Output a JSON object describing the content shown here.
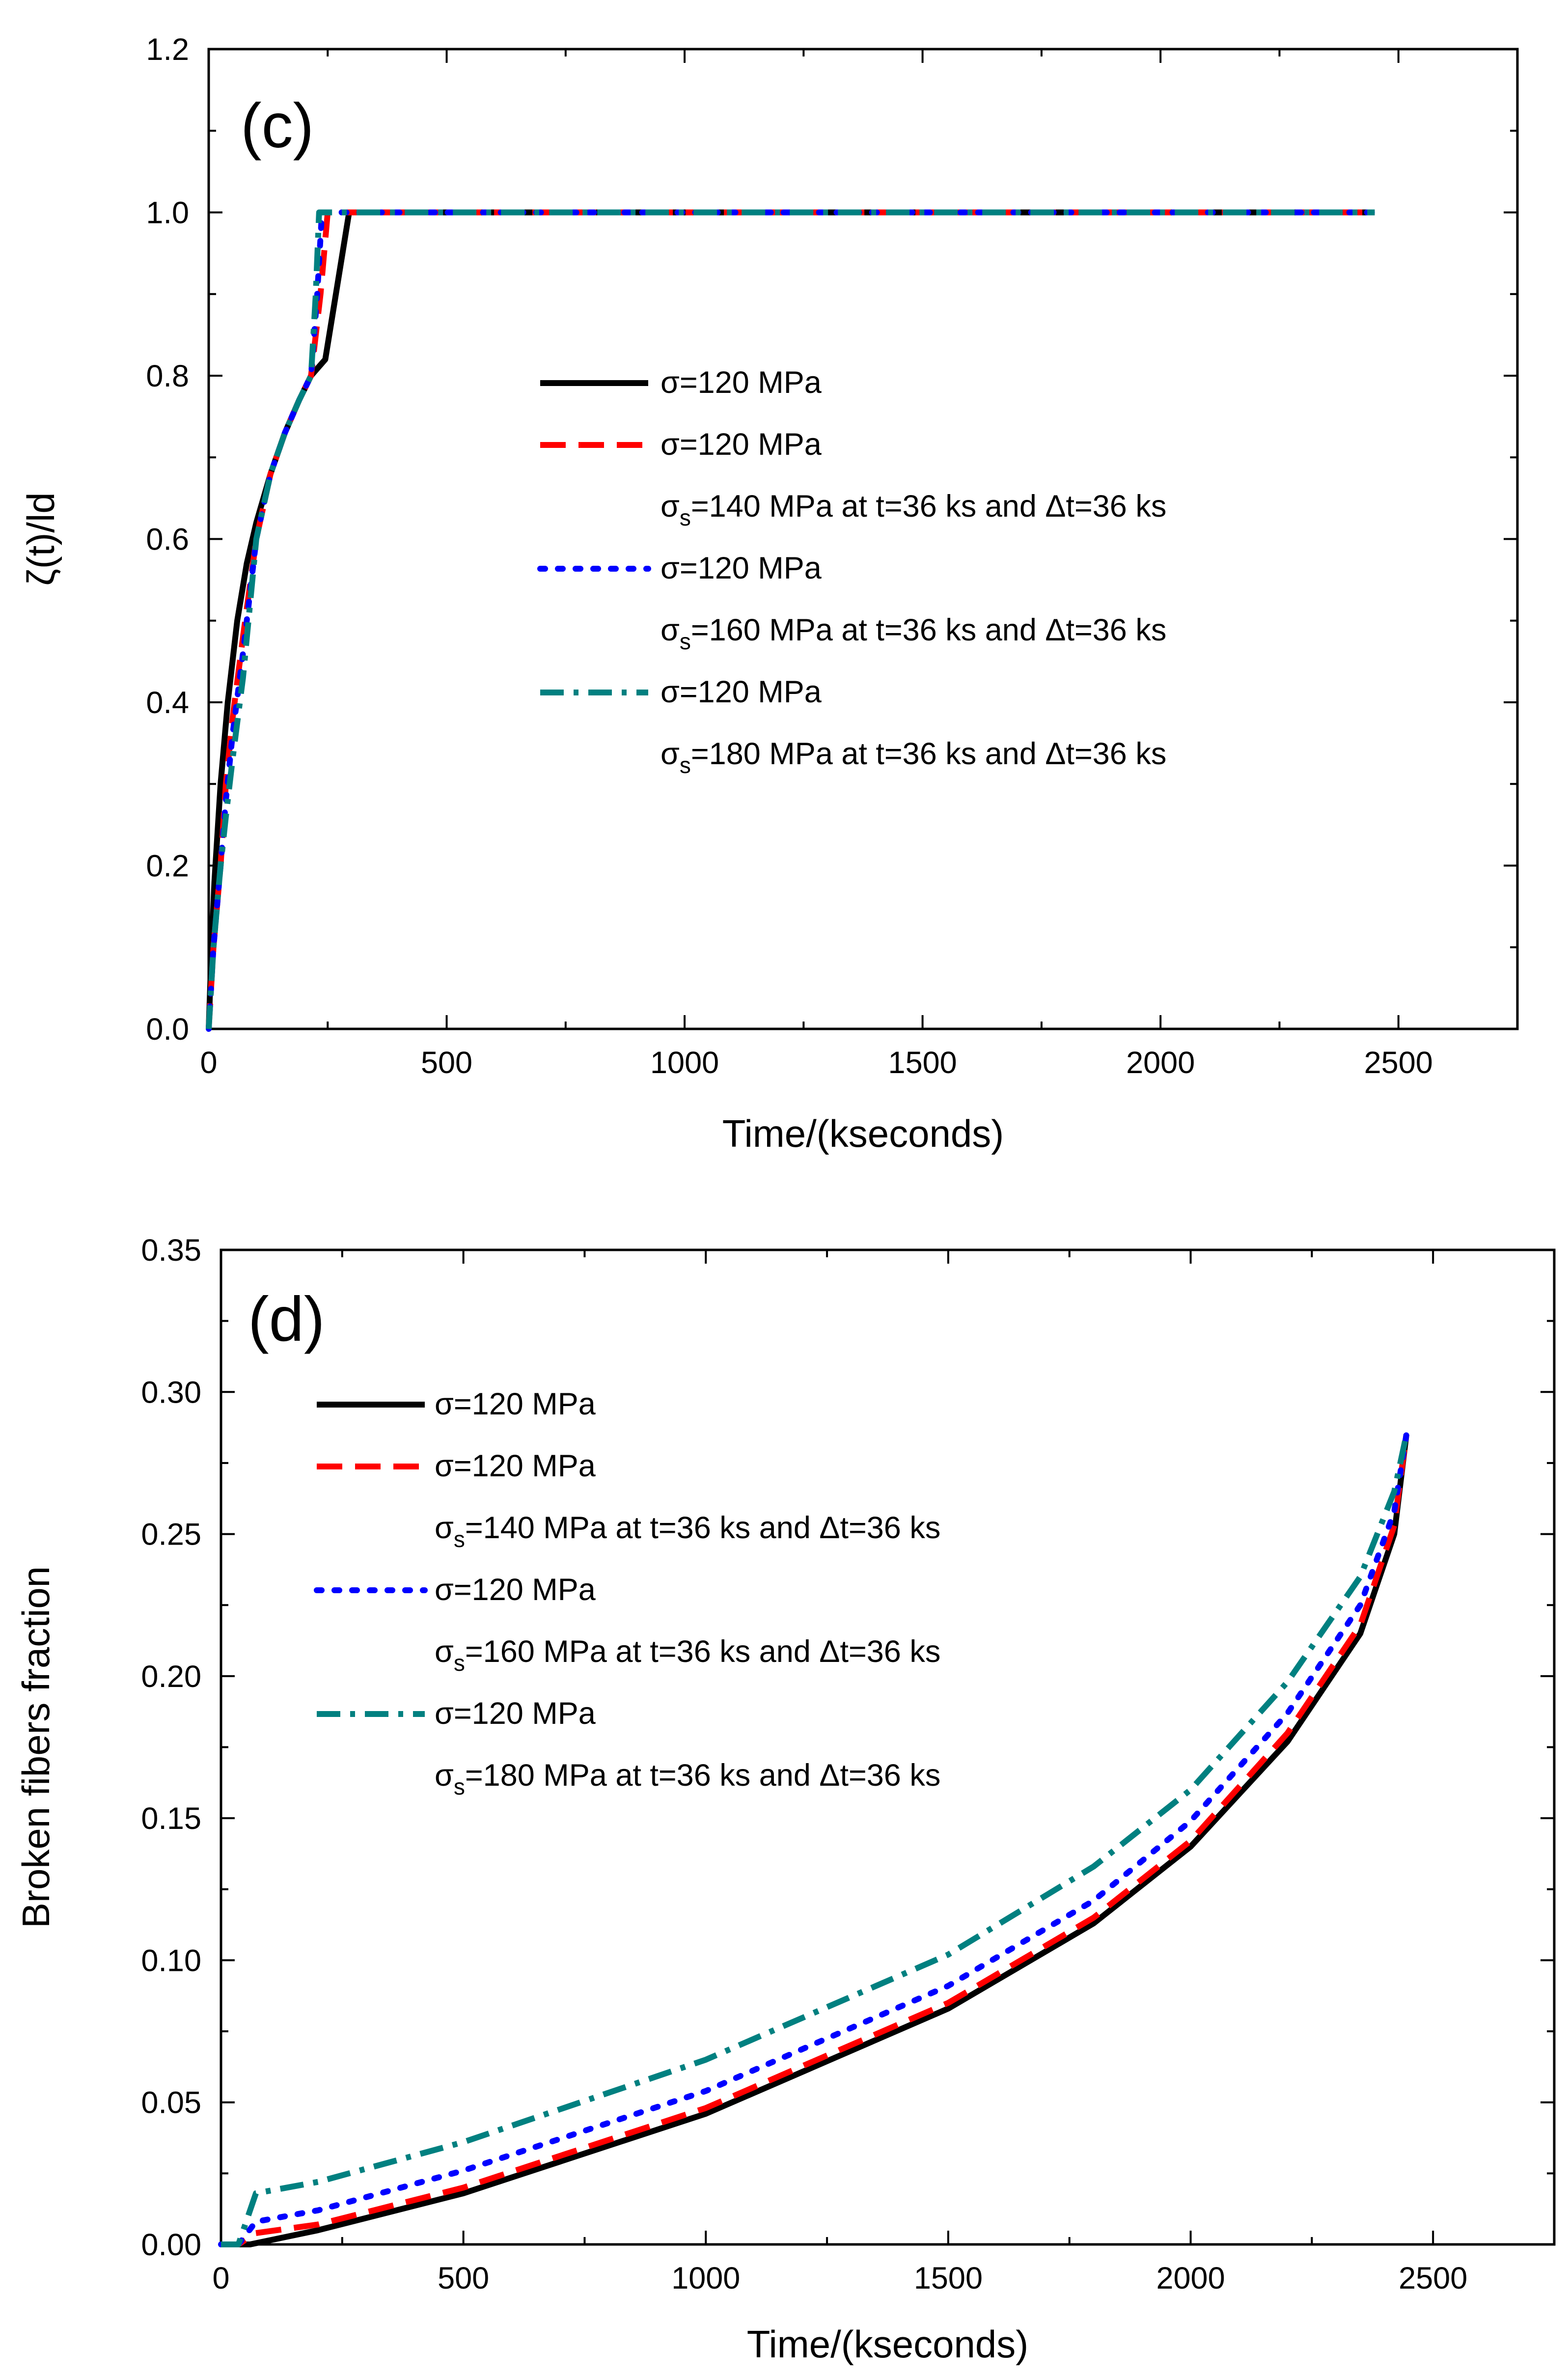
{
  "chart_data": [
    {
      "type": "line",
      "panel_label": "(c)",
      "xlabel": "Time/(kseconds)",
      "ylabel": "ζ(t)/ld",
      "xlim": [
        0,
        2750
      ],
      "ylim": [
        0,
        1.2
      ],
      "x_ticks": [
        "0",
        "500",
        "1000",
        "1500",
        "2000",
        "2500"
      ],
      "y_ticks": [
        "0.0",
        "0.2",
        "0.4",
        "0.6",
        "0.8",
        "1.0",
        "1.2"
      ],
      "legend_position": "center-right",
      "series": [
        {
          "name": "σ=120 MPa",
          "legend_lines": [
            "σ=120 MPa"
          ],
          "color": "#000000",
          "dash": "solid",
          "points": [
            [
              0,
              0.0
            ],
            [
              6,
              0.1
            ],
            [
              12,
              0.18
            ],
            [
              25,
              0.3
            ],
            [
              40,
              0.4
            ],
            [
              60,
              0.5
            ],
            [
              80,
              0.57
            ],
            [
              100,
              0.62
            ],
            [
              130,
              0.68
            ],
            [
              160,
              0.73
            ],
            [
              190,
              0.77
            ],
            [
              215,
              0.8
            ],
            [
              245,
              0.82
            ],
            [
              270,
              0.91
            ],
            [
              295,
              1.0
            ],
            [
              1000,
              1.0
            ],
            [
              2000,
              1.0
            ],
            [
              2450,
              1.0
            ]
          ]
        },
        {
          "name": "σ=120 MPa, σs=140 MPa at t=36 ks and Δt=36 ks",
          "legend_lines": [
            "σ=120 MPa",
            "σs=140 MPa at t=36 ks and Δt=36 ks"
          ],
          "color": "#ff0000",
          "dash": "long-dash",
          "points": [
            [
              0,
              0.0
            ],
            [
              10,
              0.1
            ],
            [
              25,
              0.2
            ],
            [
              36,
              0.3
            ],
            [
              50,
              0.38
            ],
            [
              72,
              0.48
            ],
            [
              100,
              0.6
            ],
            [
              130,
              0.68
            ],
            [
              160,
              0.73
            ],
            [
              190,
              0.77
            ],
            [
              215,
              0.8
            ],
            [
              235,
              0.9
            ],
            [
              250,
              1.0
            ],
            [
              1000,
              1.0
            ],
            [
              2000,
              1.0
            ],
            [
              2450,
              1.0
            ]
          ]
        },
        {
          "name": "σ=120 MPa, σs=160 MPa at t=36 ks and Δt=36 ks",
          "legend_lines": [
            "σ=120 MPa",
            "σs=160 MPa at t=36 ks and Δt=36 ks"
          ],
          "color": "#0000ff",
          "dash": "dot",
          "points": [
            [
              0,
              0.0
            ],
            [
              10,
              0.1
            ],
            [
              25,
              0.2
            ],
            [
              36,
              0.28
            ],
            [
              50,
              0.36
            ],
            [
              72,
              0.46
            ],
            [
              100,
              0.6
            ],
            [
              130,
              0.68
            ],
            [
              160,
              0.73
            ],
            [
              190,
              0.77
            ],
            [
              215,
              0.8
            ],
            [
              228,
              0.9
            ],
            [
              238,
              1.0
            ],
            [
              1000,
              1.0
            ],
            [
              2000,
              1.0
            ],
            [
              2450,
              1.0
            ]
          ]
        },
        {
          "name": "σ=120 MPa, σs=180 MPa at t=36 ks and Δt=36 ks",
          "legend_lines": [
            "σ=120 MPa",
            "σs=180 MPa at t=36 ks and Δt=36 ks"
          ],
          "color": "#008080",
          "dash": "dash-dot",
          "points": [
            [
              0,
              0.0
            ],
            [
              10,
              0.1
            ],
            [
              25,
              0.2
            ],
            [
              36,
              0.26
            ],
            [
              50,
              0.33
            ],
            [
              72,
              0.43
            ],
            [
              100,
              0.6
            ],
            [
              130,
              0.68
            ],
            [
              160,
              0.73
            ],
            [
              190,
              0.77
            ],
            [
              215,
              0.8
            ],
            [
              225,
              0.9
            ],
            [
              232,
              1.0
            ],
            [
              1000,
              1.0
            ],
            [
              2000,
              1.0
            ],
            [
              2450,
              1.0
            ]
          ]
        }
      ]
    },
    {
      "type": "line",
      "panel_label": "(d)",
      "xlabel": "Time/(kseconds)",
      "ylabel": "Broken fibers fraction",
      "xlim": [
        0,
        2750
      ],
      "ylim": [
        0,
        0.35
      ],
      "x_ticks": [
        "0",
        "500",
        "1000",
        "1500",
        "2000",
        "2500"
      ],
      "y_ticks": [
        "0.00",
        "0.05",
        "0.10",
        "0.15",
        "0.20",
        "0.25",
        "0.30",
        "0.35"
      ],
      "legend_position": "top-left",
      "series": [
        {
          "name": "σ=120 MPa",
          "legend_lines": [
            "σ=120 MPa"
          ],
          "color": "#000000",
          "dash": "solid",
          "points": [
            [
              0,
              0.0
            ],
            [
              60,
              0.0
            ],
            [
              200,
              0.005
            ],
            [
              500,
              0.018
            ],
            [
              1000,
              0.046
            ],
            [
              1500,
              0.083
            ],
            [
              1800,
              0.113
            ],
            [
              2000,
              0.14
            ],
            [
              2200,
              0.177
            ],
            [
              2350,
              0.215
            ],
            [
              2420,
              0.25
            ],
            [
              2445,
              0.285
            ]
          ]
        },
        {
          "name": "σ=120 MPa, σs=140 MPa at t=36 ks and Δt=36 ks",
          "legend_lines": [
            "σ=120 MPa",
            "σs=140 MPa at t=36 ks and Δt=36 ks"
          ],
          "color": "#ff0000",
          "dash": "long-dash",
          "points": [
            [
              0,
              0.0
            ],
            [
              36,
              0.0
            ],
            [
              72,
              0.004
            ],
            [
              200,
              0.007
            ],
            [
              500,
              0.02
            ],
            [
              1000,
              0.048
            ],
            [
              1500,
              0.085
            ],
            [
              1800,
              0.115
            ],
            [
              2000,
              0.142
            ],
            [
              2200,
              0.18
            ],
            [
              2350,
              0.218
            ],
            [
              2420,
              0.253
            ],
            [
              2445,
              0.285
            ]
          ]
        },
        {
          "name": "σ=120 MPa, σs=160 MPa at t=36 ks and Δt=36 ks",
          "legend_lines": [
            "σ=120 MPa",
            "σs=160 MPa at t=36 ks and Δt=36 ks"
          ],
          "color": "#0000ff",
          "dash": "dot",
          "points": [
            [
              0,
              0.0
            ],
            [
              36,
              0.0
            ],
            [
              72,
              0.008
            ],
            [
              200,
              0.012
            ],
            [
              500,
              0.026
            ],
            [
              1000,
              0.054
            ],
            [
              1500,
              0.091
            ],
            [
              1800,
              0.121
            ],
            [
              2000,
              0.149
            ],
            [
              2200,
              0.187
            ],
            [
              2350,
              0.225
            ],
            [
              2420,
              0.258
            ],
            [
              2445,
              0.285
            ]
          ]
        },
        {
          "name": "σ=120 MPa, σs=180 MPa at t=36 ks and Δt=36 ks",
          "legend_lines": [
            "σ=120 MPa",
            "σs=180 MPa at t=36 ks and Δt=36 ks"
          ],
          "color": "#008080",
          "dash": "dash-dot",
          "points": [
            [
              0,
              0.0
            ],
            [
              36,
              0.0
            ],
            [
              72,
              0.018
            ],
            [
              200,
              0.022
            ],
            [
              500,
              0.036
            ],
            [
              1000,
              0.065
            ],
            [
              1500,
              0.102
            ],
            [
              1800,
              0.133
            ],
            [
              2000,
              0.16
            ],
            [
              2200,
              0.198
            ],
            [
              2350,
              0.235
            ],
            [
              2420,
              0.265
            ],
            [
              2445,
              0.285
            ]
          ]
        }
      ]
    }
  ]
}
